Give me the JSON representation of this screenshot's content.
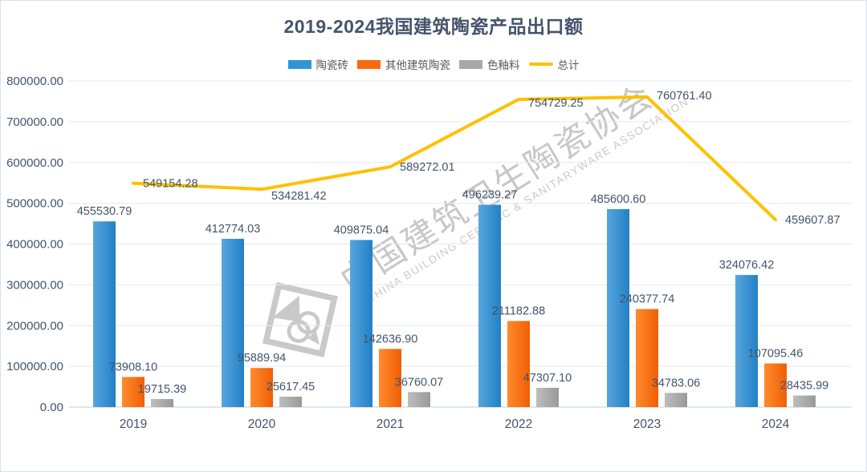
{
  "chart_data": {
    "type": "bar",
    "title": "2019-2024我国建筑陶瓷产品出口额",
    "categories": [
      "2019",
      "2020",
      "2021",
      "2022",
      "2023",
      "2024"
    ],
    "series": [
      {
        "name": "陶瓷砖",
        "type": "bar",
        "color": "#2E96D6",
        "color_light": "#57A6DD",
        "color_dark": "#2280C6",
        "values": [
          455530.79,
          412774.03,
          409875.04,
          496239.27,
          485600.6,
          324076.42
        ]
      },
      {
        "name": "其他建筑陶瓷",
        "type": "bar",
        "color": "#F96A0F",
        "color_light": "#FF8B2E",
        "color_dark": "#F05E04",
        "values": [
          73908.1,
          95889.94,
          142636.9,
          211182.88,
          240377.74,
          107095.46
        ]
      },
      {
        "name": "色釉料",
        "type": "bar",
        "color": "#A8A8A8",
        "color_light": "#BEBEBE",
        "color_dark": "#999999",
        "values": [
          19715.39,
          25617.45,
          36760.07,
          47307.1,
          34783.06,
          28435.99
        ]
      }
    ],
    "total_series": {
      "name": "总计",
      "type": "line",
      "color": "#FFC000",
      "values": [
        549154.28,
        534281.42,
        589272.01,
        754729.25,
        760761.4,
        459607.87
      ]
    },
    "yaxis": {
      "min": 0,
      "max": 800000,
      "step": 100000,
      "tick_labels": [
        "0.00",
        "100000.00",
        "200000.00",
        "300000.00",
        "400000.00",
        "500000.00",
        "600000.00",
        "700000.00",
        "800000.00"
      ]
    },
    "grid": true,
    "legend_position": "top",
    "text_color": "#44546A",
    "gridline_color": "#e4eaf2",
    "baseline_color": "#c6cfdb"
  },
  "watermark": {
    "cn": "中国建筑卫生陶瓷协会",
    "en": "CHINA BUILDING CERAMIC & SANITARYWARE ASSOCIATION"
  }
}
